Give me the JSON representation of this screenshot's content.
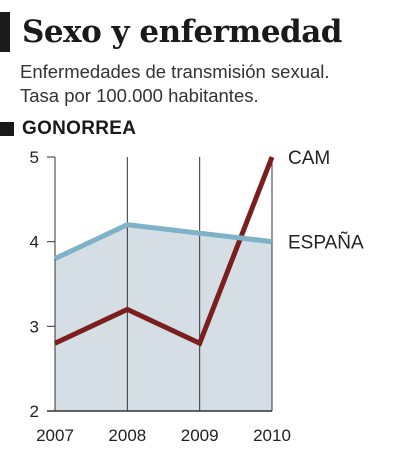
{
  "header": {
    "title": "Sexo y enfermedad",
    "subtitle_line1": "Enfermedades de transmisión sexual.",
    "subtitle_line2": "Tasa por 100.000 habitantes.",
    "section": "GONORREA"
  },
  "chart_data": {
    "type": "line",
    "title": "Sexo y enfermedad",
    "subtitle": "Enfermedades de transmisión sexual. Tasa por 100.000 habitantes.",
    "section": "GONORREA",
    "x": [
      "2007",
      "2008",
      "2009",
      "2010"
    ],
    "xlabel": "",
    "ylabel": "",
    "ylim": [
      2,
      5
    ],
    "yticks": [
      "2",
      "3",
      "4",
      "5"
    ],
    "grid": true,
    "series": [
      {
        "name": "CAM",
        "values": [
          2.8,
          3.2,
          2.8,
          5.0
        ],
        "color": "#7a1e1e"
      },
      {
        "name": "ESPAÑA",
        "values": [
          3.8,
          4.2,
          4.1,
          4.0
        ],
        "color": "#7fb1c8"
      }
    ],
    "fill_color": "#d5dee5"
  }
}
